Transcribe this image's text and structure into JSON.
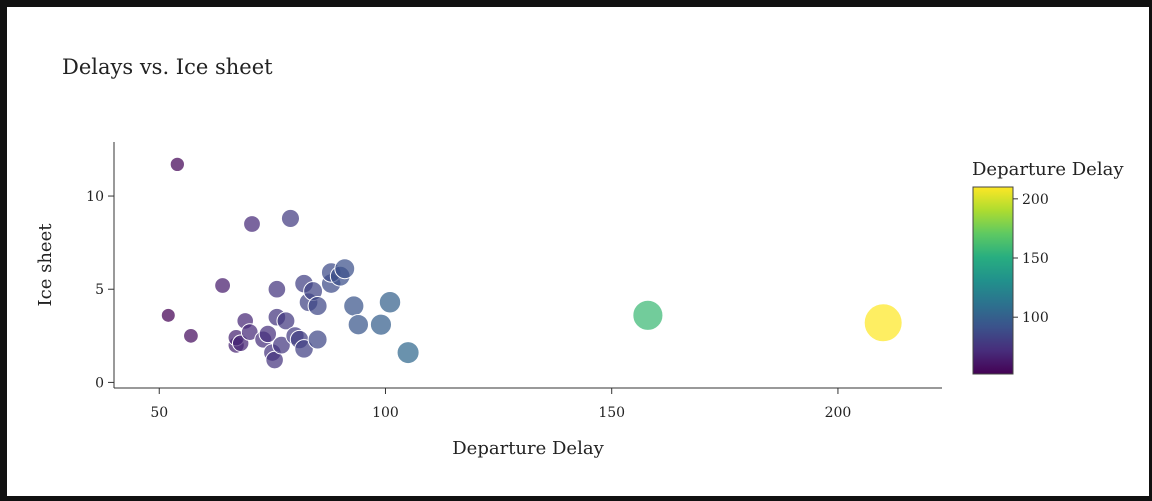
{
  "chart_data": {
    "type": "scatter",
    "title": "Delays vs. Ice sheet",
    "xlabel": "Departure Delay",
    "ylabel": "Ice sheet",
    "xlim": [
      40,
      223
    ],
    "ylim": [
      -0.3,
      12.9
    ],
    "x_ticks": [
      50,
      100,
      150,
      200
    ],
    "y_ticks": [
      0,
      5,
      10
    ],
    "grid": false,
    "colorbar": {
      "title": "Departure Delay",
      "range": [
        52,
        210
      ],
      "ticks": [
        100,
        150,
        200
      ],
      "colormap": "viridis"
    },
    "points": [
      {
        "x": 54,
        "y": 11.7
      },
      {
        "x": 52,
        "y": 3.6
      },
      {
        "x": 57,
        "y": 2.5
      },
      {
        "x": 64,
        "y": 5.2
      },
      {
        "x": 67,
        "y": 2.0
      },
      {
        "x": 67,
        "y": 2.4
      },
      {
        "x": 68,
        "y": 2.1
      },
      {
        "x": 69,
        "y": 3.3
      },
      {
        "x": 70,
        "y": 2.7
      },
      {
        "x": 70.5,
        "y": 8.5
      },
      {
        "x": 73,
        "y": 2.3
      },
      {
        "x": 74,
        "y": 2.6
      },
      {
        "x": 75,
        "y": 1.6
      },
      {
        "x": 75.5,
        "y": 1.2
      },
      {
        "x": 76,
        "y": 3.5
      },
      {
        "x": 76,
        "y": 5.0
      },
      {
        "x": 77,
        "y": 2.0
      },
      {
        "x": 78,
        "y": 3.3
      },
      {
        "x": 79,
        "y": 8.8
      },
      {
        "x": 80,
        "y": 2.5
      },
      {
        "x": 81,
        "y": 2.3
      },
      {
        "x": 82,
        "y": 1.8
      },
      {
        "x": 82,
        "y": 5.3
      },
      {
        "x": 83,
        "y": 4.3
      },
      {
        "x": 84,
        "y": 4.9
      },
      {
        "x": 85,
        "y": 4.1
      },
      {
        "x": 85,
        "y": 2.3
      },
      {
        "x": 88,
        "y": 5.3
      },
      {
        "x": 88,
        "y": 5.9
      },
      {
        "x": 90,
        "y": 5.7
      },
      {
        "x": 91,
        "y": 6.1
      },
      {
        "x": 93,
        "y": 4.1
      },
      {
        "x": 94,
        "y": 3.1
      },
      {
        "x": 99,
        "y": 3.1
      },
      {
        "x": 101,
        "y": 4.3
      },
      {
        "x": 105,
        "y": 1.6
      },
      {
        "x": 158,
        "y": 3.6
      },
      {
        "x": 210,
        "y": 3.2
      }
    ]
  }
}
